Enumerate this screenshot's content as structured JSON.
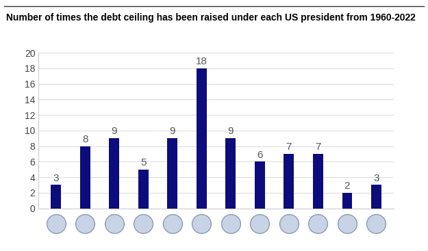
{
  "chart_data": {
    "type": "bar",
    "title": "Number of times the debt ceiling has been raised under each US president from 1960-2022",
    "categories": [
      null,
      null,
      null,
      null,
      null,
      null,
      null,
      null,
      null,
      null,
      null,
      null
    ],
    "values": [
      3,
      8,
      9,
      5,
      9,
      18,
      9,
      6,
      7,
      7,
      2,
      3
    ],
    "color": "#0c0c7c",
    "ylim": [
      0,
      20
    ],
    "yticks": [
      0,
      2,
      4,
      6,
      8,
      10,
      12,
      14,
      16,
      18,
      20
    ],
    "grid": true,
    "data_labels": true,
    "tick_labels": "y"
  }
}
